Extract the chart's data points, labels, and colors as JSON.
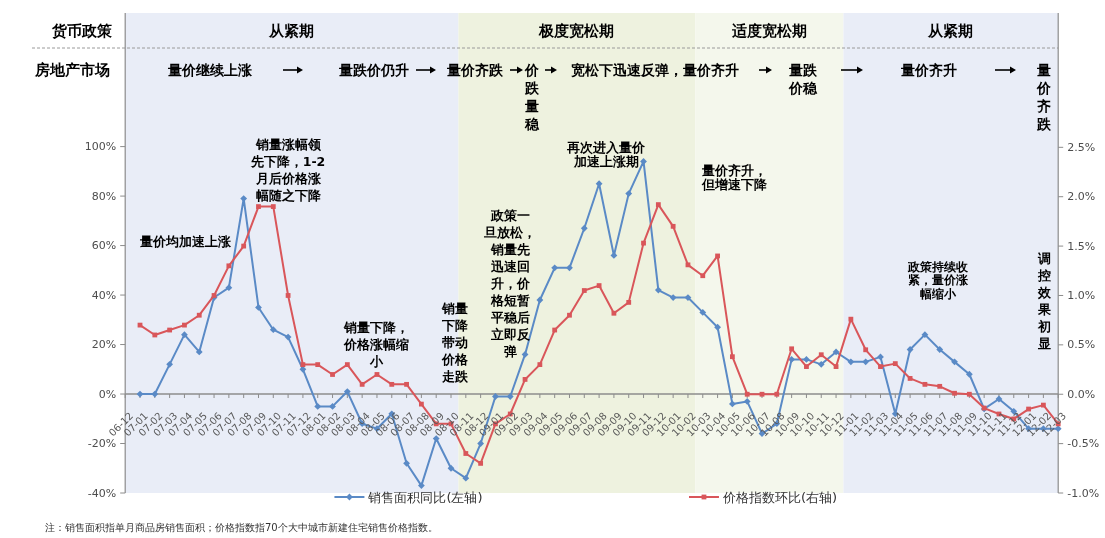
{
  "chart_data": {
    "type": "line",
    "categories": [
      "06-12",
      "07-01",
      "07-02",
      "07-03",
      "07-04",
      "07-05",
      "07-06",
      "07-07",
      "07-08",
      "07-09",
      "07-10",
      "07-11",
      "07-12",
      "08-01",
      "08-02",
      "08-03",
      "08-04",
      "08-05",
      "08-06",
      "08-07",
      "08-08",
      "08-09",
      "08-10",
      "08-11",
      "08-12",
      "09-01",
      "09-02",
      "09-03",
      "09-04",
      "09-05",
      "09-06",
      "09-07",
      "09-08",
      "09-09",
      "09-10",
      "09-11",
      "09-12",
      "10-01",
      "10-02",
      "10-03",
      "10-04",
      "10-05",
      "10-06",
      "10-07",
      "10-08",
      "10-09",
      "10-10",
      "10-11",
      "10-12",
      "11-01",
      "11-02",
      "11-03",
      "11-04",
      "11-05",
      "11-06",
      "11-07",
      "11-08",
      "11-09",
      "11-10",
      "11-11",
      "11-12",
      "12-01",
      "12-02",
      "12-03"
    ],
    "series": [
      {
        "name": "销售面积同比(左轴)",
        "color": "#5a8ac6",
        "marker": "diamond",
        "values": [
          null,
          0,
          0,
          12,
          24,
          17,
          39,
          43,
          79,
          35,
          26,
          23,
          10,
          -5,
          -5,
          1,
          -12,
          -14,
          -8,
          -28,
          -37,
          -18,
          -30,
          -34,
          -20,
          -1,
          -1,
          16,
          38,
          51,
          51,
          67,
          85,
          56,
          81,
          94,
          42,
          39,
          39,
          33,
          27,
          -4,
          -3,
          -16,
          -12,
          14,
          14,
          12,
          17,
          13,
          13,
          15,
          -8,
          18,
          24,
          18,
          13,
          8,
          -6,
          -2,
          -7,
          -14,
          -14,
          -14
        ]
      },
      {
        "name": "价格指数环比(右轴)",
        "color": "#d9565a",
        "marker": "square",
        "axis": "y2",
        "values": [
          null,
          0.7,
          0.6,
          0.65,
          0.7,
          0.8,
          1.0,
          1.3,
          1.5,
          1.9,
          1.9,
          1.0,
          0.3,
          0.3,
          0.2,
          0.3,
          0.1,
          0.2,
          0.1,
          0.1,
          -0.1,
          -0.3,
          -0.3,
          -0.6,
          -0.7,
          -0.3,
          -0.2,
          0.15,
          0.3,
          0.65,
          0.8,
          1.05,
          1.1,
          0.82,
          0.93,
          1.53,
          1.92,
          1.7,
          1.31,
          1.2,
          1.4,
          0.38,
          0,
          0,
          0,
          0.46,
          0.28,
          0.4,
          0.28,
          0.76,
          0.45,
          0.28,
          0.31,
          0.16,
          0.1,
          0.08,
          0.01,
          0,
          -0.14,
          -0.2,
          -0.25,
          -0.15,
          -0.11,
          -0.3
        ]
      }
    ],
    "ylim": [
      -40,
      154
    ],
    "yticks": [
      {
        "value": -40,
        "label": "-40%"
      },
      {
        "value": -20,
        "label": "-20%"
      },
      {
        "value": 0,
        "label": "0%"
      },
      {
        "value": 20,
        "label": "20%"
      },
      {
        "value": 40,
        "label": "40%"
      },
      {
        "value": 60,
        "label": "60%"
      },
      {
        "value": 80,
        "label": "80%"
      },
      {
        "value": 100,
        "label": "100%"
      }
    ],
    "y2lim": [
      -1.0,
      3.86
    ],
    "y2ticks": [
      {
        "value": -1.0,
        "label": "-1.0%"
      },
      {
        "value": -0.5,
        "label": "-0.5%"
      },
      {
        "value": 0,
        "label": "0.0%"
      },
      {
        "value": 0.5,
        "label": "0.5%"
      },
      {
        "value": 1.0,
        "label": "1.0%"
      },
      {
        "value": 1.5,
        "label": "1.5%"
      },
      {
        "value": 2.0,
        "label": "2.0%"
      },
      {
        "value": 2.5,
        "label": "2.5%"
      }
    ],
    "legend": "bottom",
    "bands": [
      {
        "axis": "x",
        "from": "06-12",
        "to": "08-10",
        "label": "从紧期",
        "color": "#e9edf7"
      },
      {
        "axis": "x",
        "from": "08-11",
        "to": "10-02",
        "label": "极度宽松期",
        "color": "#eef2df"
      },
      {
        "axis": "x",
        "from": "10-03",
        "to": "10-12",
        "label": "适度宽松期",
        "color": "#f4f7ec"
      },
      {
        "axis": "x",
        "from": "11-01",
        "to": "12-03",
        "label": "从紧期",
        "color": "#e9edf7"
      }
    ],
    "annotations": [
      "货币政策",
      "房地产市场",
      "量价继续上涨",
      "量跌价仍升",
      "量价齐跌",
      "价跌量稳",
      "宽松下迅速反弹，量价齐升",
      "量跌价稳",
      "量价齐升",
      "量价齐跌",
      "量价均加速上涨",
      "销量涨幅领先下降，1-2月后价格涨幅随之下降",
      "销量下降，价格涨幅缩小",
      "销量下降带动价格走跌",
      "政策一旦放松，销量先迅速回升，价格短暂平稳后立即反弹",
      "再次进入量价加速上涨期",
      "量价齐升，但增速下降",
      "政策持续收紧，量价涨幅缩小",
      "调控效果初显",
      "注：销售面积指单月商品房销售面积；价格指数指70个大中城市新建住宅销售价格指数。"
    ]
  }
}
